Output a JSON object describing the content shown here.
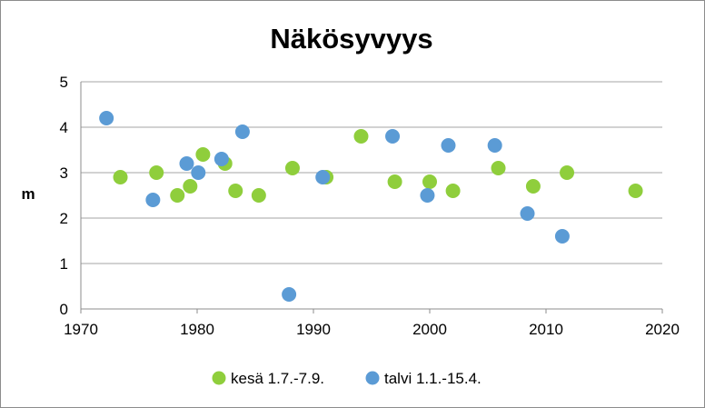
{
  "chart_data": {
    "type": "scatter",
    "title": "Näkösyvyys",
    "xlabel": "",
    "ylabel": "m",
    "xlim": [
      1970,
      2020
    ],
    "ylim": [
      0,
      5
    ],
    "x_ticks": [
      "1970",
      "1980",
      "1990",
      "2000",
      "2010",
      "2020"
    ],
    "y_ticks": [
      "0",
      "1",
      "2",
      "3",
      "4",
      "5"
    ],
    "grid": "horizontal",
    "legend_position": "bottom",
    "series": [
      {
        "name": "kesä 1.7.-7.9.",
        "color": "#8fce3c",
        "points": [
          {
            "x": 1973.4,
            "y": 2.9
          },
          {
            "x": 1976.5,
            "y": 3.0
          },
          {
            "x": 1978.3,
            "y": 2.5
          },
          {
            "x": 1979.4,
            "y": 2.7
          },
          {
            "x": 1980.5,
            "y": 3.4
          },
          {
            "x": 1982.4,
            "y": 3.2
          },
          {
            "x": 1983.3,
            "y": 2.6
          },
          {
            "x": 1985.3,
            "y": 2.5
          },
          {
            "x": 1988.2,
            "y": 3.1
          },
          {
            "x": 1991.1,
            "y": 2.9
          },
          {
            "x": 1994.1,
            "y": 3.8
          },
          {
            "x": 1997.0,
            "y": 2.8
          },
          {
            "x": 2000.0,
            "y": 2.8
          },
          {
            "x": 2002.0,
            "y": 2.6
          },
          {
            "x": 2005.9,
            "y": 3.1
          },
          {
            "x": 2008.9,
            "y": 2.7
          },
          {
            "x": 2011.8,
            "y": 3.0
          },
          {
            "x": 2017.7,
            "y": 2.6
          }
        ]
      },
      {
        "name": "talvi 1.1.-15.4.",
        "color": "#5b9bd5",
        "points": [
          {
            "x": 1972.2,
            "y": 4.2
          },
          {
            "x": 1976.2,
            "y": 2.4
          },
          {
            "x": 1979.1,
            "y": 3.2
          },
          {
            "x": 1980.1,
            "y": 3.0
          },
          {
            "x": 1982.1,
            "y": 3.3
          },
          {
            "x": 1983.9,
            "y": 3.9
          },
          {
            "x": 1987.9,
            "y": 0.32
          },
          {
            "x": 1990.8,
            "y": 2.9
          },
          {
            "x": 1996.8,
            "y": 3.8
          },
          {
            "x": 1999.8,
            "y": 2.5
          },
          {
            "x": 2001.6,
            "y": 3.6
          },
          {
            "x": 2005.6,
            "y": 3.6
          },
          {
            "x": 2008.4,
            "y": 2.1
          },
          {
            "x": 2011.4,
            "y": 1.6
          }
        ]
      }
    ]
  }
}
